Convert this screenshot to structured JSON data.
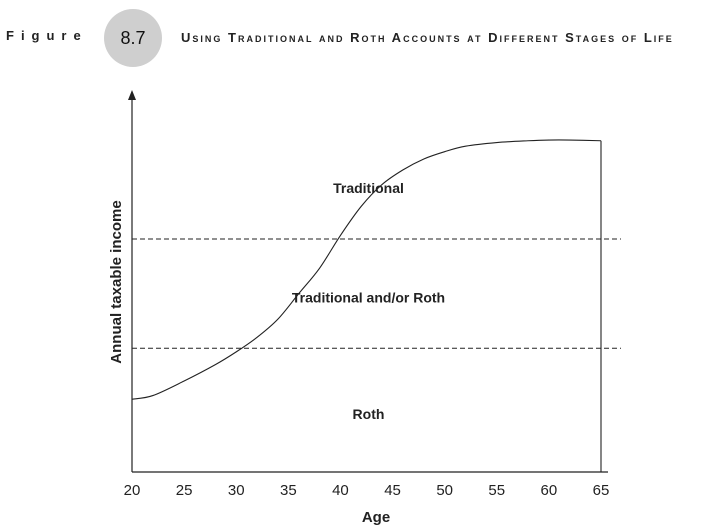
{
  "figure": {
    "label": "Figure",
    "number": "8.7",
    "title": "Using Traditional and Roth Accounts at Different Stages of Life"
  },
  "chart_data": {
    "type": "line",
    "xlabel": "Age",
    "ylabel": "Annual taxable income",
    "x_ticks": [
      20,
      25,
      30,
      35,
      40,
      45,
      50,
      55,
      60,
      65
    ],
    "xlim": [
      20,
      65
    ],
    "ylim": [
      0,
      100
    ],
    "y_ticks_shown": false,
    "grid": false,
    "series": [
      {
        "x": [
          20,
          22,
          25,
          28,
          30,
          32,
          34,
          36,
          38,
          40,
          42,
          44,
          46,
          48,
          50,
          52,
          55,
          58,
          60,
          62,
          65
        ],
        "y": [
          20,
          21,
          25,
          29.5,
          33,
          37,
          42,
          49,
          56,
          65,
          73,
          79,
          83,
          86,
          88,
          89.5,
          90.5,
          91,
          91.2,
          91.2,
          91
        ]
      }
    ],
    "reference_lines": [
      {
        "axis": "y",
        "value": 64,
        "style": "dashed"
      },
      {
        "axis": "y",
        "value": 34,
        "style": "dashed"
      }
    ],
    "regions": [
      {
        "label": "Traditional",
        "x": 42.5,
        "y": 78
      },
      {
        "label": "Traditional and/or Roth",
        "x": 42.5,
        "y": 48
      },
      {
        "label": "Roth",
        "x": 42.5,
        "y": 16
      }
    ]
  }
}
